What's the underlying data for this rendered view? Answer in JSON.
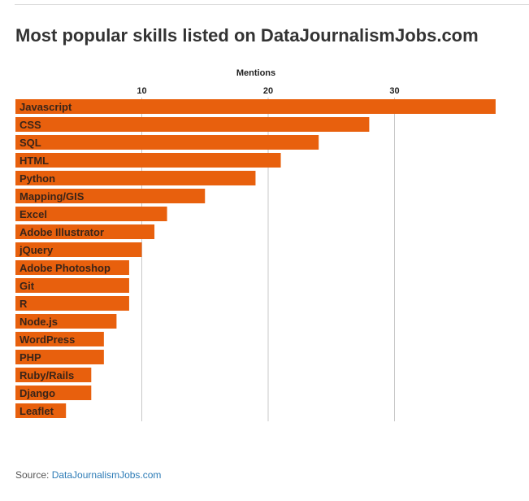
{
  "page": {
    "title": "Most popular skills listed on DataJournalismJobs.com",
    "source_label": "Source: ",
    "source_link": "DataJournalismJobs.com"
  },
  "colors": {
    "bar": "#e8600d",
    "grid": "#c8c8c8",
    "bar_label": "#3a2418",
    "axis_text": "#222222"
  },
  "chart_data": {
    "type": "bar",
    "orientation": "horizontal",
    "xlabel": "Mentions",
    "ylabel": "",
    "xticks": [
      10,
      20,
      30
    ],
    "xlim": [
      0,
      40
    ],
    "grid": true,
    "categories": [
      "Javascript",
      "CSS",
      "SQL",
      "HTML",
      "Python",
      "Mapping/GIS",
      "Excel",
      "Adobe Illustrator",
      "jQuery",
      "Adobe Photoshop",
      "Git",
      "R",
      "Node.js",
      "WordPress",
      "PHP",
      "Ruby/Rails",
      "Django",
      "Leaflet"
    ],
    "values": [
      38,
      28,
      24,
      21,
      19,
      15,
      12,
      11,
      10,
      9,
      9,
      9,
      8,
      7,
      7,
      6,
      6,
      4
    ]
  }
}
